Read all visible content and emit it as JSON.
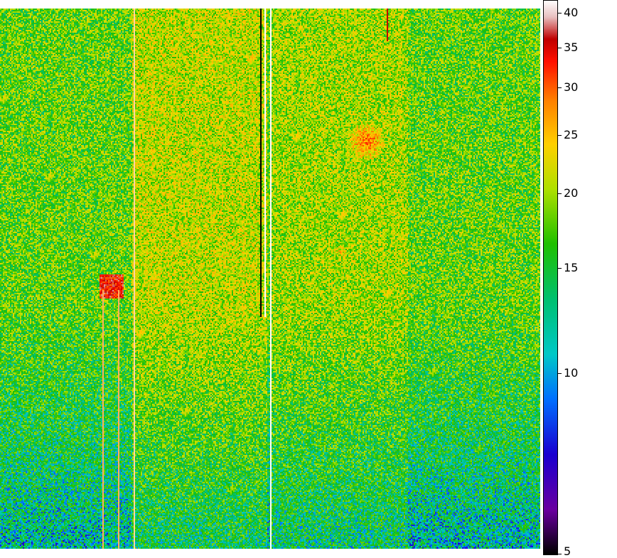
{
  "chart_data": {
    "type": "heatmap",
    "title": "",
    "xlabel": "",
    "ylabel": "",
    "colorbar": {
      "scale": "log",
      "range": [
        5,
        42
      ],
      "ticks": [
        {
          "value": 40,
          "label": "40"
        },
        {
          "value": 35,
          "label": "35"
        },
        {
          "value": 30,
          "label": "30"
        },
        {
          "value": 25,
          "label": "25"
        },
        {
          "value": 20,
          "label": "20"
        },
        {
          "value": 15,
          "label": "15"
        },
        {
          "value": 10,
          "label": "10"
        },
        {
          "value": 5,
          "label": "5"
        }
      ],
      "colormap": [
        {
          "stop": 0.0,
          "color": "#000000"
        },
        {
          "stop": 0.08,
          "color": "#6a00a0"
        },
        {
          "stop": 0.18,
          "color": "#1a00d0"
        },
        {
          "stop": 0.28,
          "color": "#0070ff"
        },
        {
          "stop": 0.36,
          "color": "#00c8c8"
        },
        {
          "stop": 0.46,
          "color": "#00c070"
        },
        {
          "stop": 0.56,
          "color": "#20c000"
        },
        {
          "stop": 0.66,
          "color": "#b0e000"
        },
        {
          "stop": 0.74,
          "color": "#ffd000"
        },
        {
          "stop": 0.82,
          "color": "#ff8000"
        },
        {
          "stop": 0.89,
          "color": "#ff1000"
        },
        {
          "stop": 0.93,
          "color": "#c00000"
        },
        {
          "stop": 0.97,
          "color": "#e8c0c0"
        },
        {
          "stop": 1.0,
          "color": "#ffffff"
        }
      ]
    },
    "image": {
      "background_level": 18,
      "background_gradient_bottom": 12,
      "noise": 5,
      "bright_columns": [
        {
          "x_start": 0.245,
          "x_end": 0.495,
          "level": 21
        },
        {
          "x_start": 0.5,
          "x_end": 0.755,
          "level": 20
        }
      ],
      "hot_spots": [
        {
          "x": 0.68,
          "y": 0.245,
          "radius": 0.035,
          "level": 30
        },
        {
          "x": 0.63,
          "y": 0.45,
          "radius": 0.025,
          "level": 24
        },
        {
          "x": 0.205,
          "y": 0.515,
          "radius": 0.022,
          "level": 34,
          "square": true
        }
      ],
      "line_features": [
        {
          "x": 0.484,
          "y_start": 0.0,
          "y_end": 0.57,
          "color": "#000000"
        },
        {
          "x": 0.49,
          "y_start": 0.0,
          "y_end": 0.57,
          "color": "#ffffff"
        },
        {
          "x": 0.5,
          "y_start": 0.0,
          "y_end": 1.0,
          "color": "#ffffff"
        },
        {
          "x": 0.247,
          "y_start": 0.0,
          "y_end": 1.0,
          "color": "#ffd8a0"
        },
        {
          "x": 0.19,
          "y_start": 0.52,
          "y_end": 1.0,
          "color": "#ffb060"
        },
        {
          "x": 0.218,
          "y_start": 0.52,
          "y_end": 1.0,
          "color": "#ffb060"
        },
        {
          "x": 0.718,
          "y_start": 0.0,
          "y_end": 0.06,
          "color": "#c00000"
        }
      ]
    }
  }
}
